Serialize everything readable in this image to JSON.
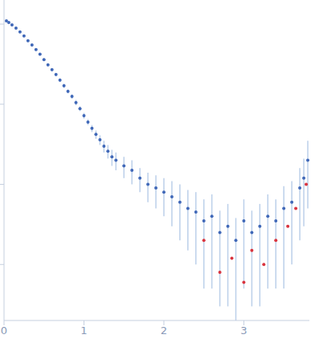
{
  "chart_data": {
    "type": "scatter",
    "log": "y",
    "grid": false,
    "tick_labels": "x",
    "marker": "circle",
    "xlim": [
      0,
      3.82
    ],
    "xticks": [
      0,
      1,
      2,
      3
    ],
    "ylim": [
      0.002,
      20
    ],
    "yticks": [
      0.01,
      0.1,
      1,
      10
    ],
    "error_color": "#bcd0ea",
    "series": [
      {
        "color": "#4068b8",
        "x": [
          0.03,
          0.06,
          0.1,
          0.15,
          0.2,
          0.25,
          0.3,
          0.35,
          0.4,
          0.45,
          0.5,
          0.55,
          0.6,
          0.65,
          0.7,
          0.75,
          0.8,
          0.85,
          0.9,
          0.95,
          1.0,
          1.05,
          1.1,
          1.15,
          1.2,
          1.25,
          1.3,
          1.35,
          1.4,
          1.5,
          1.6,
          1.7,
          1.8,
          1.9,
          2.0,
          2.1,
          2.2,
          2.3,
          2.4,
          2.5,
          2.6,
          2.7,
          2.8,
          2.9,
          3.0,
          3.1,
          3.2,
          3.3,
          3.4,
          3.5,
          3.6,
          3.7,
          3.75,
          3.8
        ],
        "values": [
          11.0,
          10.5,
          9.8,
          8.9,
          8.0,
          7.1,
          6.2,
          5.5,
          4.8,
          4.2,
          3.6,
          3.1,
          2.7,
          2.35,
          2.0,
          1.7,
          1.45,
          1.25,
          1.05,
          0.88,
          0.72,
          0.6,
          0.5,
          0.42,
          0.36,
          0.3,
          0.26,
          0.22,
          0.2,
          0.17,
          0.15,
          0.12,
          0.1,
          0.09,
          0.08,
          0.07,
          0.06,
          0.05,
          0.045,
          0.035,
          0.04,
          0.025,
          0.03,
          0.02,
          0.035,
          0.025,
          0.03,
          0.04,
          0.035,
          0.05,
          0.06,
          0.09,
          0.12,
          0.2
        ],
        "errors": [
          0.1,
          0.1,
          0.1,
          0.1,
          0.1,
          0.1,
          0.1,
          0.1,
          0.1,
          0.1,
          0.1,
          0.1,
          0.1,
          0.1,
          0.1,
          0.1,
          0.08,
          0.08,
          0.08,
          0.06,
          0.06,
          0.05,
          0.05,
          0.05,
          0.05,
          0.05,
          0.05,
          0.05,
          0.05,
          0.05,
          0.05,
          0.04,
          0.04,
          0.04,
          0.04,
          0.04,
          0.04,
          0.035,
          0.035,
          0.03,
          0.035,
          0.022,
          0.027,
          0.018,
          0.03,
          0.022,
          0.027,
          0.035,
          0.03,
          0.045,
          0.05,
          0.07,
          0.09,
          0.15
        ]
      },
      {
        "color": "#d9343f",
        "x": [
          2.5,
          2.7,
          2.85,
          3.0,
          3.1,
          3.25,
          3.4,
          3.55,
          3.65,
          3.78
        ],
        "values": [
          0.02,
          0.008,
          0.012,
          0.006,
          0.015,
          0.01,
          0.02,
          0.03,
          0.05,
          0.1
        ]
      }
    ]
  }
}
